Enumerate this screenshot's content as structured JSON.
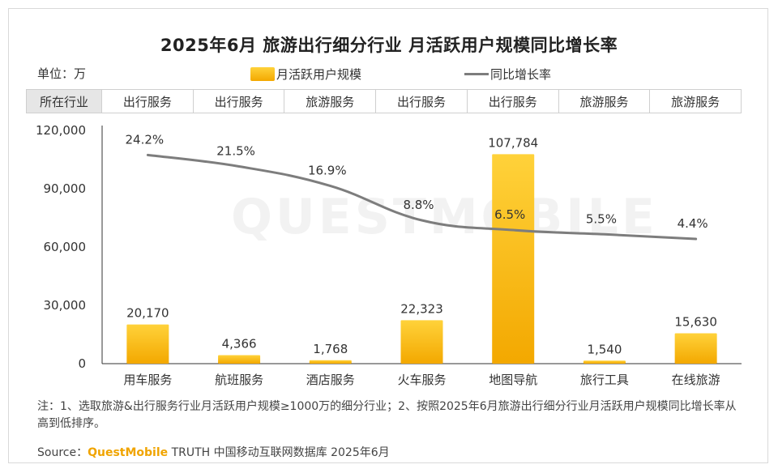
{
  "title": "2025年6月 旅游出行细分行业 月活跃用户规模同比增长率",
  "unit_label": "单位：万",
  "legend": {
    "bar_label": "月活跃用户规模",
    "line_label": "同比增长率"
  },
  "industry_row": {
    "header": "所在行业",
    "cells": [
      "出行服务",
      "出行服务",
      "旅游服务",
      "出行服务",
      "出行服务",
      "旅游服务",
      "旅游服务"
    ]
  },
  "watermark": "QUESTMOBILE",
  "colors": {
    "bar_top": "#ffd23a",
    "bar_bottom": "#f3a800",
    "line": "#7d7d7d",
    "axis": "#333333"
  },
  "chart_data": {
    "type": "bar",
    "categories": [
      "用车服务",
      "航班服务",
      "酒店服务",
      "火车服务",
      "地图导航",
      "旅行工具",
      "在线旅游"
    ],
    "series": [
      {
        "name": "月活跃用户规模",
        "type": "bar",
        "values": [
          20170,
          4366,
          1768,
          22323,
          107784,
          1540,
          15630
        ],
        "labels": [
          "20,170",
          "4,366",
          "1,768",
          "22,323",
          "107,784",
          "1,540",
          "15,630"
        ]
      },
      {
        "name": "同比增长率",
        "type": "line",
        "values": [
          24.2,
          21.5,
          16.9,
          8.8,
          6.5,
          5.5,
          4.4
        ],
        "labels": [
          "24.2%",
          "21.5%",
          "16.9%",
          "8.8%",
          "6.5%",
          "5.5%",
          "4.4%"
        ]
      }
    ],
    "y_ticks": [
      0,
      30000,
      60000,
      90000,
      120000
    ],
    "y_tick_labels": [
      "0",
      "30,000",
      "60,000",
      "90,000",
      "120,000"
    ],
    "ylim": [
      0,
      120000
    ],
    "line_ylim": [
      -25,
      30
    ],
    "grid": false
  },
  "footnote": "注：1、选取旅游&出行服务行业月活跃用户规模≥1000万的细分行业；2、按照2025年6月旅游出行细分行业月活跃用户规模同比增长率从高到低排序。",
  "source": {
    "prefix": "Source：",
    "brand": "QuestMobile",
    "suffix": " TRUTH 中国移动互联网数据库 2025年6月"
  }
}
